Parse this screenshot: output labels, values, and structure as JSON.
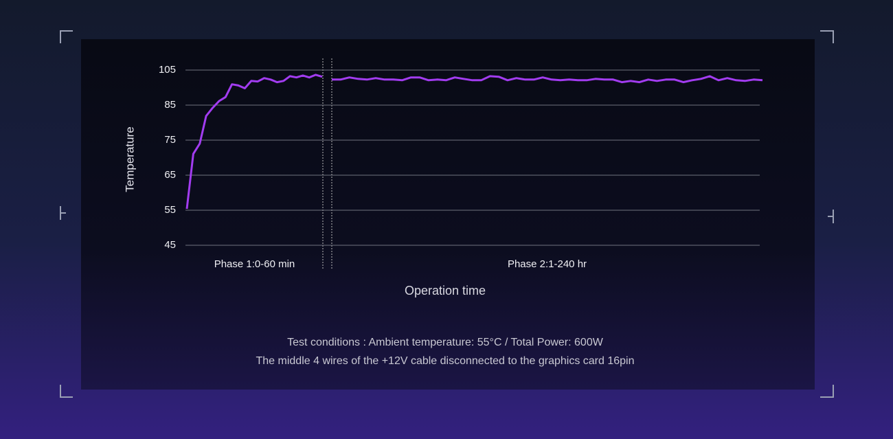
{
  "chart_data": {
    "type": "line",
    "y_label": "Temperature",
    "x_label": "Operation time",
    "ylim": [
      45,
      105
    ],
    "yticks": [
      45,
      55,
      65,
      75,
      85,
      105
    ],
    "grid": true,
    "color": "#a23cf0",
    "phases": [
      {
        "label": "Phase 1:0-60 min",
        "values": [
          55.4,
          71.1,
          74.0,
          81.9,
          84.2,
          87.3,
          89.6,
          96.9,
          96.2,
          94.6,
          98.8,
          98.5,
          100.4,
          99.6,
          98.1,
          98.8,
          101.5,
          100.8,
          101.9,
          100.8,
          102.3,
          101.2
        ]
      },
      {
        "label": "Phase 2:1-240 hr",
        "values": [
          99.6,
          99.6,
          100.8,
          100.0,
          99.6,
          100.4,
          99.6,
          99.6,
          99.2,
          100.8,
          100.8,
          99.2,
          99.6,
          99.2,
          100.8,
          100.0,
          99.2,
          99.2,
          101.5,
          101.2,
          99.2,
          100.4,
          99.6,
          99.6,
          100.8,
          99.6,
          99.2,
          99.6,
          99.2,
          99.2,
          100.0,
          99.6,
          99.6,
          98.1,
          98.8,
          98.1,
          99.6,
          98.8,
          99.6,
          99.6,
          98.1,
          99.2,
          100.0,
          101.5,
          99.2,
          100.4,
          99.2,
          98.8,
          99.6,
          99.2
        ]
      }
    ]
  },
  "notes": [
    "Test conditions : Ambient temperature: 55°C / Total Power: 600W",
    "The middle 4 wires of the +12V cable disconnected to the graphics card 16pin"
  ]
}
